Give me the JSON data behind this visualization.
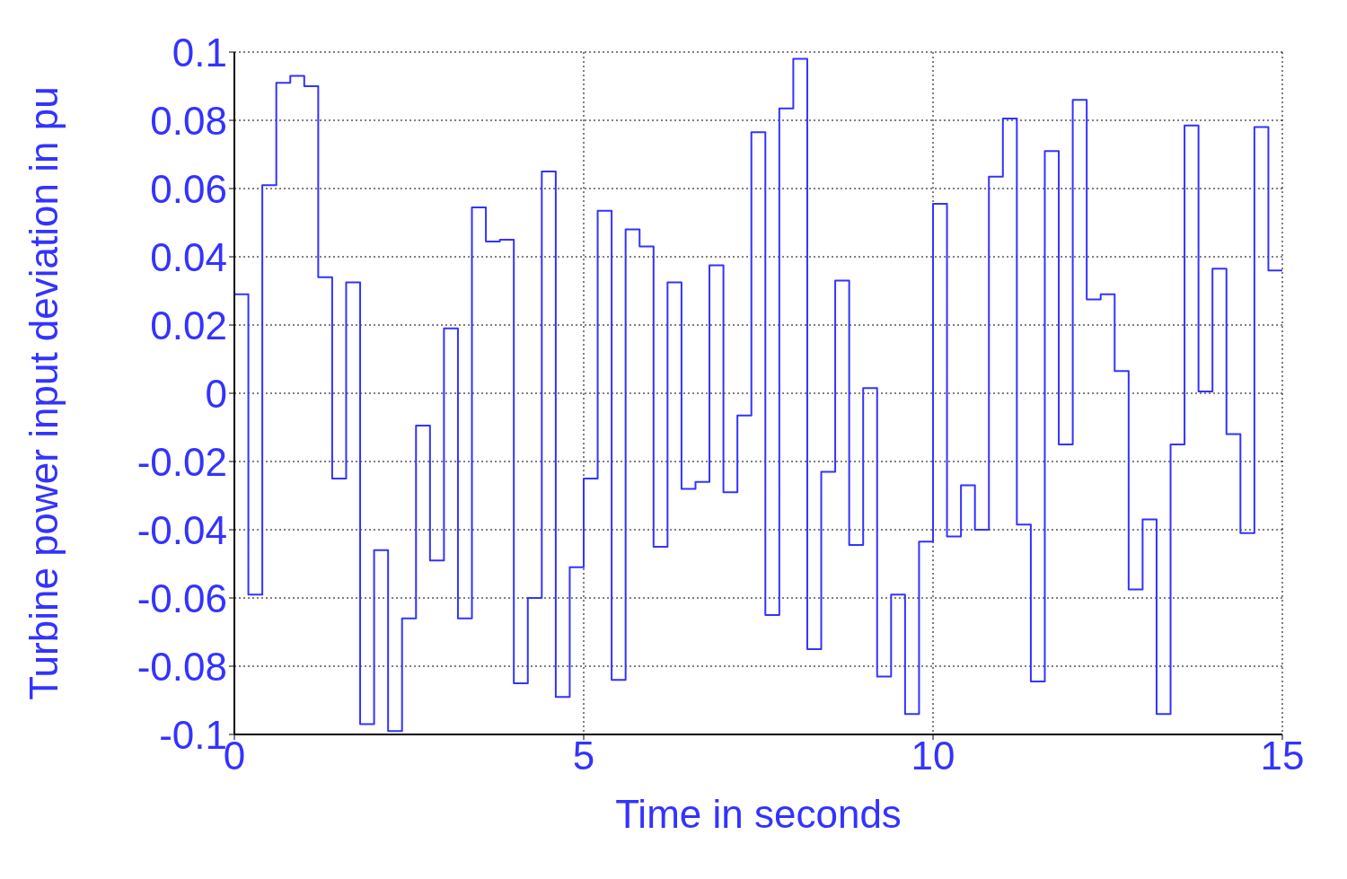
{
  "chart_data": {
    "type": "step",
    "xlabel": "Time in seconds",
    "ylabel": "Turbine power input deviation in pu",
    "xlim": [
      0,
      15
    ],
    "xticks": [
      0,
      5,
      10,
      15
    ],
    "ylim": [
      -0.1,
      0.1
    ],
    "yticks": [
      -0.1,
      -0.08,
      -0.06,
      -0.04,
      -0.02,
      0,
      0.02,
      0.04,
      0.06,
      0.08,
      0.1
    ],
    "grid": true,
    "line_style": "solid",
    "series": [
      {
        "color": "#3333ff",
        "x": [
          0,
          0,
          0.2,
          0.4,
          0.6,
          0.8,
          1.0,
          1.2,
          1.4,
          1.6,
          1.8,
          2.0,
          2.2,
          2.4,
          2.6,
          2.8,
          3.0,
          3.2,
          3.4,
          3.6,
          3.8,
          4.0,
          4.2,
          4.4,
          4.6,
          4.8,
          5.0,
          5.2,
          5.4,
          5.6,
          5.8,
          6.0,
          6.2,
          6.4,
          6.6,
          6.8,
          7.0,
          7.2,
          7.4,
          7.6,
          7.8,
          8.0,
          8.2,
          8.4,
          8.6,
          8.8,
          9.0,
          9.2,
          9.4,
          9.6,
          9.8,
          10.0,
          10.2,
          10.4,
          10.6,
          10.8,
          11.0,
          11.2,
          11.4,
          11.6,
          11.8,
          12.0,
          12.2,
          12.4,
          12.6,
          12.8,
          13.0,
          13.2,
          13.4,
          13.6,
          13.8,
          14.0,
          14.2,
          14.4,
          14.6,
          14.8,
          15
        ],
        "values": [
          0,
          0.029,
          -0.059,
          0.061,
          0.091,
          0.093,
          0.09,
          0.034,
          -0.025,
          0.0325,
          -0.097,
          -0.046,
          -0.099,
          -0.066,
          -0.0095,
          -0.049,
          0.019,
          -0.066,
          0.0545,
          0.0445,
          0.045,
          -0.085,
          -0.06,
          0.065,
          -0.089,
          -0.051,
          -0.025,
          0.0535,
          -0.084,
          0.048,
          0.043,
          -0.045,
          0.0325,
          -0.028,
          -0.026,
          0.0375,
          -0.029,
          -0.0065,
          0.0765,
          -0.065,
          0.0835,
          0.098,
          -0.075,
          -0.023,
          0.033,
          -0.0445,
          0.0015,
          -0.083,
          -0.059,
          -0.094,
          -0.0435,
          0.0555,
          -0.042,
          -0.027,
          -0.04,
          0.0635,
          0.0805,
          -0.0385,
          -0.0845,
          0.071,
          -0.015,
          0.086,
          0.0275,
          0.029,
          0.0065,
          -0.0575,
          -0.037,
          -0.094,
          -0.015,
          0.0785,
          0.0005,
          0.0365,
          -0.012,
          -0.041,
          0.078,
          0.036,
          0.036
        ]
      }
    ]
  }
}
